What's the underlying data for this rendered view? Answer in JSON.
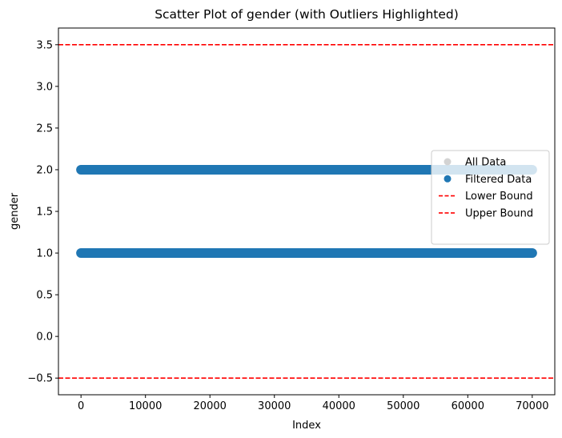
{
  "chart_data": {
    "type": "scatter",
    "title": "Scatter Plot of gender (with Outliers Highlighted)",
    "xlabel": "Index",
    "ylabel": "gender",
    "xlim": [
      -3500,
      73500
    ],
    "ylim": [
      -0.7,
      3.7
    ],
    "xticks": [
      0,
      10000,
      20000,
      30000,
      40000,
      50000,
      60000,
      70000
    ],
    "yticks": [
      -0.5,
      0.0,
      0.5,
      1.0,
      1.5,
      2.0,
      2.5,
      3.0,
      3.5
    ],
    "ytick_labels": [
      "−0.5",
      "0.0",
      "0.5",
      "1.0",
      "1.5",
      "2.0",
      "2.5",
      "3.0",
      "3.5"
    ],
    "grid": false,
    "legend_position": "center-right",
    "series": [
      {
        "name": "All Data",
        "kind": "scatter",
        "color": "#d3d3d3",
        "x_range": [
          0,
          70000
        ],
        "y_values": [
          1.0,
          2.0
        ]
      },
      {
        "name": "Filtered Data",
        "kind": "scatter",
        "color": "#1f77b4",
        "x_range": [
          0,
          70000
        ],
        "y_values": [
          1.0,
          2.0
        ]
      },
      {
        "name": "Lower Bound",
        "kind": "hline",
        "color": "#ff0000",
        "linestyle": "dashed",
        "y": -0.5
      },
      {
        "name": "Upper Bound",
        "kind": "hline",
        "color": "#ff0000",
        "linestyle": "dashed",
        "y": 3.5
      }
    ]
  }
}
